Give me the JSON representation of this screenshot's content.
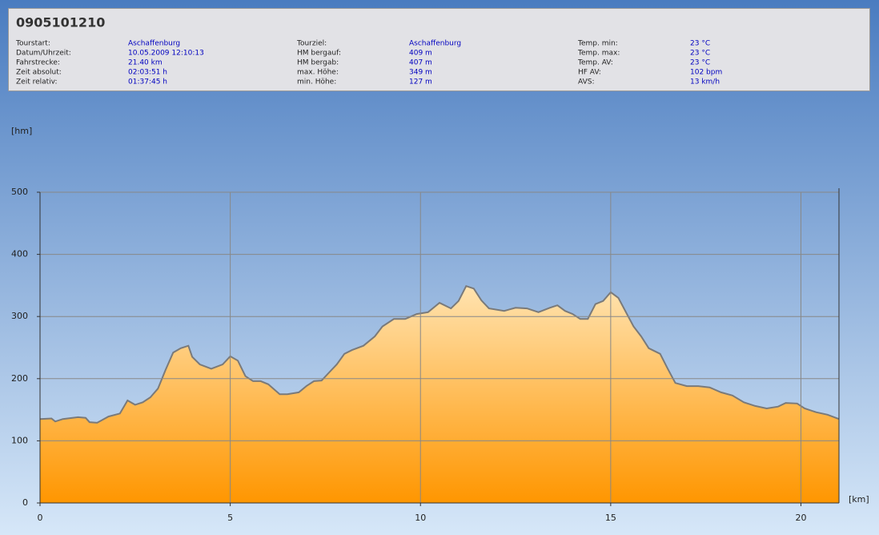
{
  "header": {
    "title": "0905101210",
    "columns": [
      [
        {
          "label": "Tourstart:",
          "value": "Aschaffenburg"
        },
        {
          "label": "Datum/Uhrzeit:",
          "value": "10.05.2009 12:10:13"
        },
        {
          "label": "Fahrstrecke:",
          "value": "21.40 km"
        },
        {
          "label": "Zeit absolut:",
          "value": "02:03:51 h"
        },
        {
          "label": "Zeit relativ:",
          "value": "01:37:45 h"
        }
      ],
      [
        {
          "label": "Tourziel:",
          "value": "Aschaffenburg"
        },
        {
          "label": "HM bergauf:",
          "value": "409 m"
        },
        {
          "label": "HM bergab:",
          "value": "407 m"
        },
        {
          "label": "max. Höhe:",
          "value": "349 m"
        },
        {
          "label": "min. Höhe:",
          "value": "127 m"
        }
      ],
      [
        {
          "label": "Temp. min:",
          "value": "23 °C"
        },
        {
          "label": "Temp. max:",
          "value": "23 °C"
        },
        {
          "label": "Temp. AV:",
          "value": "23 °C"
        },
        {
          "label": "HF AV:",
          "value": "102 bpm"
        },
        {
          "label": "AVS:",
          "value": "13 km/h"
        }
      ]
    ]
  },
  "chart_data": {
    "type": "area",
    "y_label": "[hm]",
    "x_label": "[km]",
    "x": [
      0,
      0.3,
      0.4,
      0.6,
      1.0,
      1.2,
      1.3,
      1.5,
      1.8,
      2.1,
      2.3,
      2.5,
      2.7,
      2.9,
      3.1,
      3.3,
      3.5,
      3.7,
      3.9,
      4.0,
      4.2,
      4.5,
      4.8,
      5.0,
      5.2,
      5.4,
      5.6,
      5.8,
      6.0,
      6.3,
      6.5,
      6.8,
      7.0,
      7.2,
      7.4,
      7.6,
      7.8,
      8.0,
      8.2,
      8.5,
      8.8,
      9.0,
      9.3,
      9.6,
      9.9,
      10.2,
      10.5,
      10.8,
      11.0,
      11.2,
      11.4,
      11.6,
      11.8,
      12.2,
      12.5,
      12.8,
      13.1,
      13.4,
      13.6,
      13.8,
      14.0,
      14.2,
      14.4,
      14.6,
      14.8,
      15.0,
      15.2,
      15.4,
      15.6,
      15.8,
      16.0,
      16.3,
      16.5,
      16.7,
      17.0,
      17.3,
      17.6,
      17.9,
      18.2,
      18.5,
      18.8,
      19.1,
      19.4,
      19.6,
      19.9,
      20.1,
      20.4,
      20.7,
      21.0
    ],
    "values": [
      135,
      136,
      131,
      135,
      138,
      137,
      130,
      129,
      139,
      144,
      165,
      158,
      162,
      170,
      184,
      214,
      242,
      249,
      253,
      235,
      223,
      216,
      223,
      236,
      229,
      204,
      196,
      196,
      191,
      175,
      175,
      178,
      188,
      196,
      197,
      210,
      223,
      240,
      246,
      253,
      268,
      284,
      296,
      296,
      304,
      307,
      322,
      313,
      325,
      349,
      345,
      326,
      313,
      309,
      314,
      313,
      307,
      314,
      318,
      309,
      304,
      296,
      296,
      320,
      325,
      339,
      330,
      307,
      284,
      268,
      249,
      240,
      216,
      193,
      188,
      188,
      186,
      178,
      173,
      162,
      156,
      152,
      155,
      161,
      160,
      152,
      146,
      142,
      135
    ],
    "color": "#ff9900",
    "line_color": "#7a7a7a",
    "xlim": [
      0,
      21
    ],
    "ylim": [
      0,
      500
    ],
    "xticks": [
      0,
      5,
      10,
      15,
      20
    ],
    "yticks": [
      0,
      100,
      200,
      300,
      400,
      500
    ],
    "grid": true
  }
}
